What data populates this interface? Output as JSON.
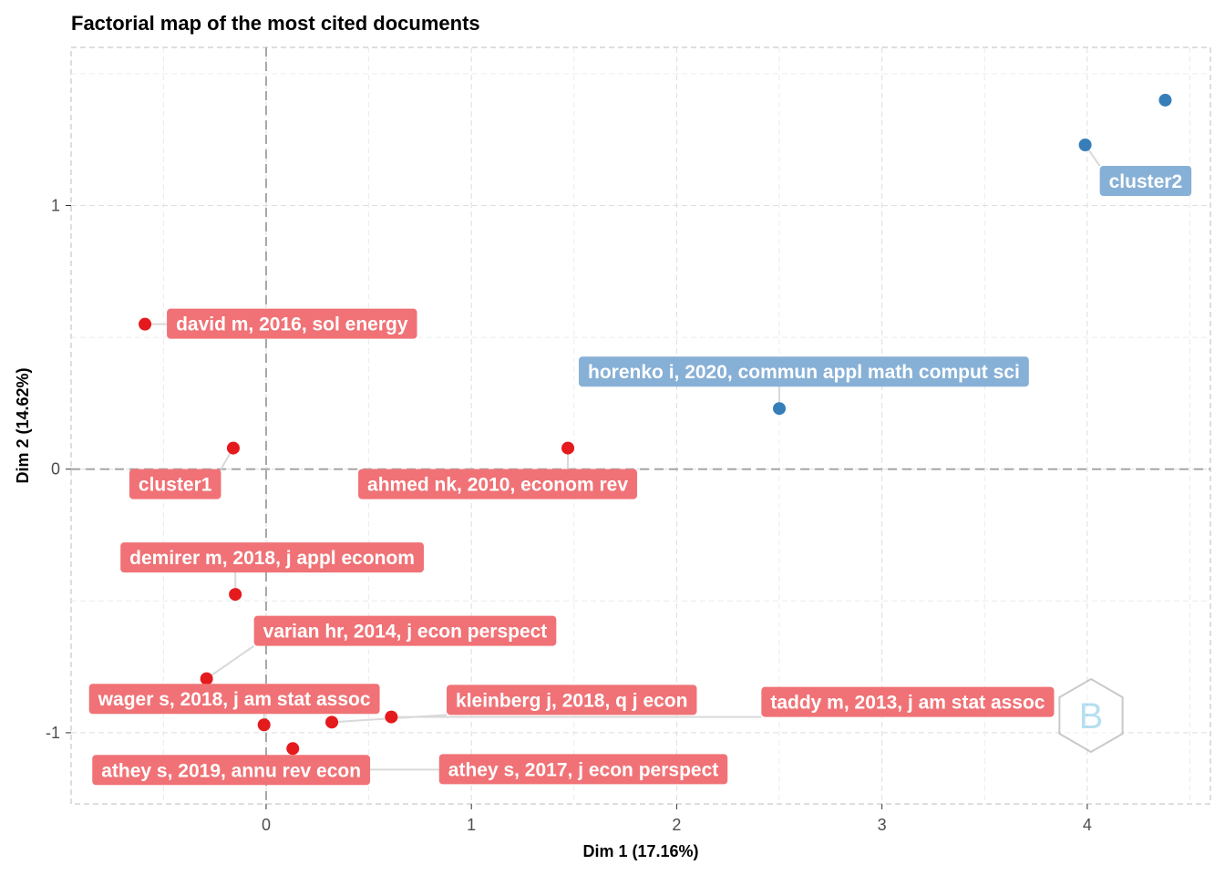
{
  "chart_data": {
    "type": "scatter",
    "title": "Factorial map of the most cited documents",
    "xlabel": "Dim 1 (17.16%)",
    "ylabel": "Dim 2 (14.62%)",
    "xlim": [
      -0.95,
      4.6
    ],
    "ylim": [
      -1.27,
      1.6
    ],
    "x_ticks": [
      0,
      1,
      2,
      3,
      4
    ],
    "y_ticks": [
      -1,
      0,
      1
    ],
    "grid": true,
    "reference_lines": {
      "x": 0,
      "y": 0
    },
    "colors": {
      "cluster1": "#e41a1c",
      "cluster2": "#377eb8",
      "cluster1_label": "#f07276",
      "cluster2_label": "#87b0d6"
    },
    "points": [
      {
        "label": "david m, 2016, sol energy",
        "x": -0.59,
        "y": 0.55,
        "cluster": "cluster1"
      },
      {
        "label": "",
        "x": -0.16,
        "y": 0.08,
        "cluster": "cluster1"
      },
      {
        "label": "ahmed nk, 2010, econom rev",
        "x": 1.47,
        "y": 0.08,
        "cluster": "cluster1"
      },
      {
        "label": "demirer m, 2018, j appl econom",
        "x": -0.15,
        "y": -0.475,
        "cluster": "cluster1"
      },
      {
        "label": "varian hr, 2014, j econ perspect",
        "x": -0.29,
        "y": -0.795,
        "cluster": "cluster1"
      },
      {
        "label": "wager s, 2018, j am stat assoc",
        "x": -0.01,
        "y": -0.97,
        "cluster": "cluster1"
      },
      {
        "label": "kleinberg j, 2018, q j econ",
        "x": 0.32,
        "y": -0.96,
        "cluster": "cluster1"
      },
      {
        "label": "taddy m, 2013, j am stat assoc",
        "x": 0.61,
        "y": -0.94,
        "cluster": "cluster1"
      },
      {
        "label": "athey s, 2019, annu rev econ",
        "x": 0.13,
        "y": -1.06,
        "cluster": "cluster1"
      },
      {
        "label": "athey s, 2017, j econ perspect",
        "x": 0.23,
        "y": -1.14,
        "cluster": "cluster1"
      },
      {
        "label": "horenko i, 2020, commun appl math comput sci",
        "x": 2.5,
        "y": 0.23,
        "cluster": "cluster2"
      },
      {
        "label": "",
        "x": 3.99,
        "y": 1.23,
        "cluster": "cluster2"
      },
      {
        "label": "",
        "x": 4.38,
        "y": 1.4,
        "cluster": "cluster2"
      }
    ],
    "cluster_labels": [
      {
        "label": "cluster1",
        "x": -0.16,
        "y": 0.08,
        "cluster": "cluster1"
      },
      {
        "label": "cluster2",
        "x": 3.99,
        "y": 1.23,
        "cluster": "cluster2"
      }
    ]
  }
}
